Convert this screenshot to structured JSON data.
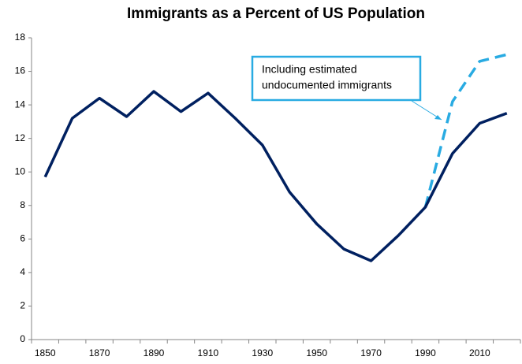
{
  "chart_data": {
    "type": "line",
    "title": "Immigrants as a Percent of US Population",
    "categories": [
      "1850",
      null,
      "1870",
      null,
      "1890",
      null,
      "1910",
      null,
      "1930",
      null,
      "1950",
      null,
      "1970",
      null,
      "1990",
      null,
      "2010",
      null
    ],
    "series": [
      {
        "color": "#29abe2",
        "style": "dashed",
        "values": [
          null,
          null,
          null,
          null,
          null,
          null,
          null,
          null,
          null,
          null,
          null,
          null,
          null,
          null,
          7.9,
          14.2,
          16.6,
          17.0
        ]
      },
      {
        "color": "#002060",
        "style": "solid",
        "values": [
          9.7,
          13.2,
          14.4,
          13.3,
          14.8,
          13.6,
          14.7,
          13.2,
          11.6,
          8.8,
          6.9,
          5.4,
          4.7,
          6.2,
          7.9,
          11.1,
          12.9,
          13.5
        ]
      }
    ],
    "annotation": {
      "lines": [
        "Including estimated",
        "undocumented immigrants"
      ],
      "color": "#29abe2"
    },
    "ylim": [
      0,
      18
    ],
    "yticks": [
      0,
      2,
      4,
      6,
      8,
      10,
      12,
      14,
      16,
      18
    ],
    "grid": false
  }
}
